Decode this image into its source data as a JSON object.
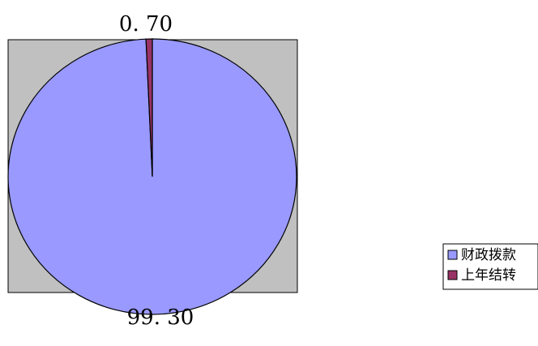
{
  "chart_data": {
    "type": "pie",
    "categories": [
      "财政拨款",
      "上年结转"
    ],
    "values": [
      99.3,
      0.7
    ],
    "data_labels": [
      "99. 30",
      "0. 70"
    ],
    "colors": [
      "#9999ff",
      "#993366"
    ],
    "plot_background": "#c0c0c0",
    "legend": {
      "placement": "right",
      "entries": [
        "财政拨款",
        "上年结转"
      ]
    }
  }
}
